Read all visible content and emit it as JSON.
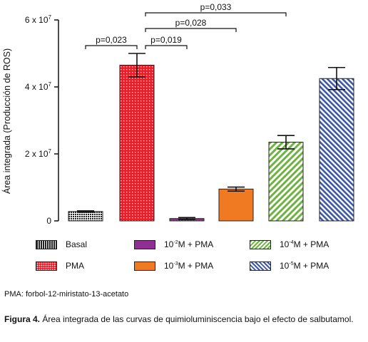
{
  "chart_data": {
    "type": "bar",
    "ylabel": "Área integrada (Producción de ROS)",
    "y_ticks": [
      {
        "value": 0,
        "label": "0",
        "exp": ""
      },
      {
        "value": 20000000,
        "label": "2 x 10",
        "exp": "7"
      },
      {
        "value": 40000000,
        "label": "4 x 10",
        "exp": "7"
      },
      {
        "value": 60000000,
        "label": "6 x 10",
        "exp": "7"
      }
    ],
    "ylim": [
      0,
      60000000
    ],
    "categories": [
      {
        "key": "basal",
        "label": "Basal",
        "pre": "",
        "exp": "",
        "post": ""
      },
      {
        "key": "pma",
        "label": "PMA",
        "pre": "",
        "exp": "",
        "post": ""
      },
      {
        "key": "m2",
        "label": "10-2M + PMA",
        "pre": "10",
        "exp": "-2",
        "post": "M + PMA"
      },
      {
        "key": "m3",
        "label": "10-3M + PMA",
        "pre": "10",
        "exp": "-3",
        "post": "M + PMA"
      },
      {
        "key": "m4",
        "label": "10-4M + PMA",
        "pre": "10",
        "exp": "-4",
        "post": "M + PMA"
      },
      {
        "key": "m5",
        "label": "10-5M + PMA",
        "pre": "10",
        "exp": "-5",
        "post": "M + PMA"
      }
    ],
    "values": [
      2800000,
      46500000,
      700000,
      9500000,
      23500000,
      42500000
    ],
    "errors": [
      200000,
      3500000,
      300000,
      600000,
      2000000,
      3300000
    ],
    "colors": [
      "#222222",
      "#e8202a",
      "#8e2f91",
      "#f07a21",
      "#6db33f",
      "#3c57a7"
    ],
    "significance": [
      {
        "label": "p=0,023",
        "from": 0,
        "to": 1
      },
      {
        "label": "p=0,019",
        "from": 1,
        "to": 2
      },
      {
        "label": "p=0,028",
        "from": 1,
        "to": 3
      },
      {
        "label": "p=0,033",
        "from": 1,
        "to": 4
      }
    ]
  },
  "footnote": "PMA: forbol-12-miristato-13-acetato",
  "caption": {
    "label": "Figura 4.",
    "text": " Área integrada de las curvas de quimioluminiscencia bajo el efecto de salbutamol."
  }
}
